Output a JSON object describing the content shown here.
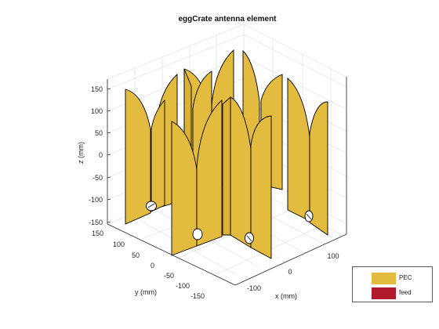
{
  "title": "eggCrate antenna element",
  "axes": {
    "xlabel": "x (mm)",
    "ylabel": "y (mm)",
    "zlabel": "z (mm)",
    "xticks": [
      "-100",
      "0",
      "100"
    ],
    "yticks": [
      "150",
      "100",
      "50",
      "0",
      "-50",
      "-100",
      "-150"
    ],
    "zticks": [
      "150",
      "100",
      "50",
      "0",
      "-50",
      "-100",
      "-150"
    ],
    "grid": true
  },
  "legend": {
    "placement": "bottom-right",
    "items": [
      {
        "label": "PEC",
        "color": "#e3bb3e"
      },
      {
        "label": "feed",
        "color": "#b2182b"
      }
    ]
  },
  "colors": {
    "pec": "#e3bb3e",
    "edge": "#000000",
    "axis": "#262626",
    "grid": "#dcdcdc"
  }
}
